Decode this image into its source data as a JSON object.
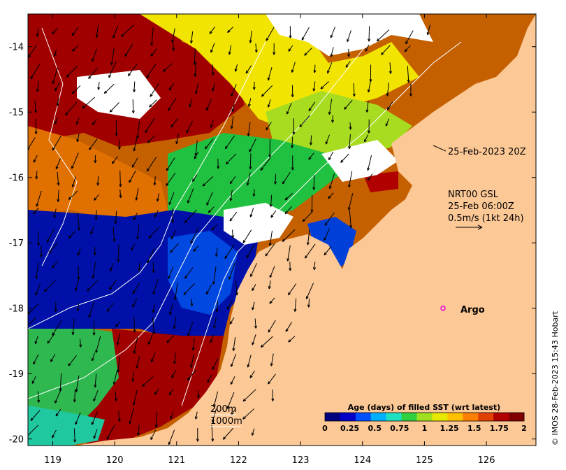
{
  "map": {
    "xaxis": {
      "ticks": [
        {
          "value": 119,
          "label": "119"
        },
        {
          "value": 120,
          "label": "120"
        },
        {
          "value": 121,
          "label": "121"
        },
        {
          "value": 122,
          "label": "122"
        },
        {
          "value": 123,
          "label": "123"
        },
        {
          "value": 124,
          "label": "124"
        },
        {
          "value": 125,
          "label": "125"
        },
        {
          "value": 126,
          "label": "126"
        }
      ],
      "range": [
        118.6,
        126.8
      ]
    },
    "yaxis": {
      "ticks": [
        {
          "value": -14,
          "label": "-14"
        },
        {
          "value": -15,
          "label": "-15"
        },
        {
          "value": -16,
          "label": "-16"
        },
        {
          "value": -17,
          "label": "-17"
        },
        {
          "value": -18,
          "label": "-18"
        },
        {
          "value": -19,
          "label": "-19"
        },
        {
          "value": -20,
          "label": "-20"
        }
      ],
      "range": [
        -20.1,
        -13.5
      ]
    },
    "annotations": {
      "timestamp": "25-Feb-2023 20Z",
      "product": "NRT00 GSL",
      "product_time": "25-Feb 06:00Z",
      "scale": "0.5m/s (1kt 24h)",
      "argo_label": "Argo",
      "contour_200": "200m",
      "contour_1000": "1000m",
      "credit": "© IMOS 28-Feb-2023 15:43 Hobart"
    },
    "argo": {
      "lon": 125.3,
      "lat": -18.0
    },
    "colorbar": {
      "title": "Age (days) of filled SST (wrt latest)",
      "tick_labels": [
        "0",
        "0.25",
        "0.5",
        "0.75",
        "1",
        "1.25",
        "1.5",
        "1.75",
        "2"
      ],
      "colors": [
        "#00007f",
        "#0000c8",
        "#0050ff",
        "#00b0ff",
        "#1fe0c0",
        "#30d040",
        "#a0e020",
        "#e8e800",
        "#ffc000",
        "#ff8000",
        "#e04000",
        "#b00000",
        "#800000"
      ]
    },
    "colors": {
      "land": "#fcc896",
      "no_data": "#ffffff",
      "contour": "#ffffff",
      "argo_marker": "#e000e0"
    }
  }
}
